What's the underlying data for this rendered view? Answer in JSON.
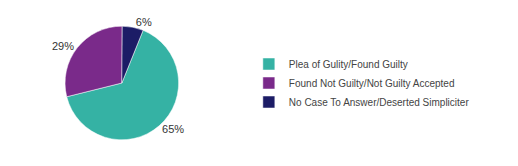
{
  "chart_data": {
    "type": "pie",
    "categories": [
      "Plea of Gulity/Found Guilty",
      "Found Not Guilty/Not Guilty Accepted",
      "No Case To Answer/Deserted Simpliciter"
    ],
    "values": [
      65,
      29,
      6
    ],
    "value_labels": [
      "65%",
      "29%",
      "6%"
    ],
    "colors": [
      "#35b2a4",
      "#7a2a8a",
      "#1c1c66"
    ],
    "data_labels": true,
    "legend": "right"
  }
}
